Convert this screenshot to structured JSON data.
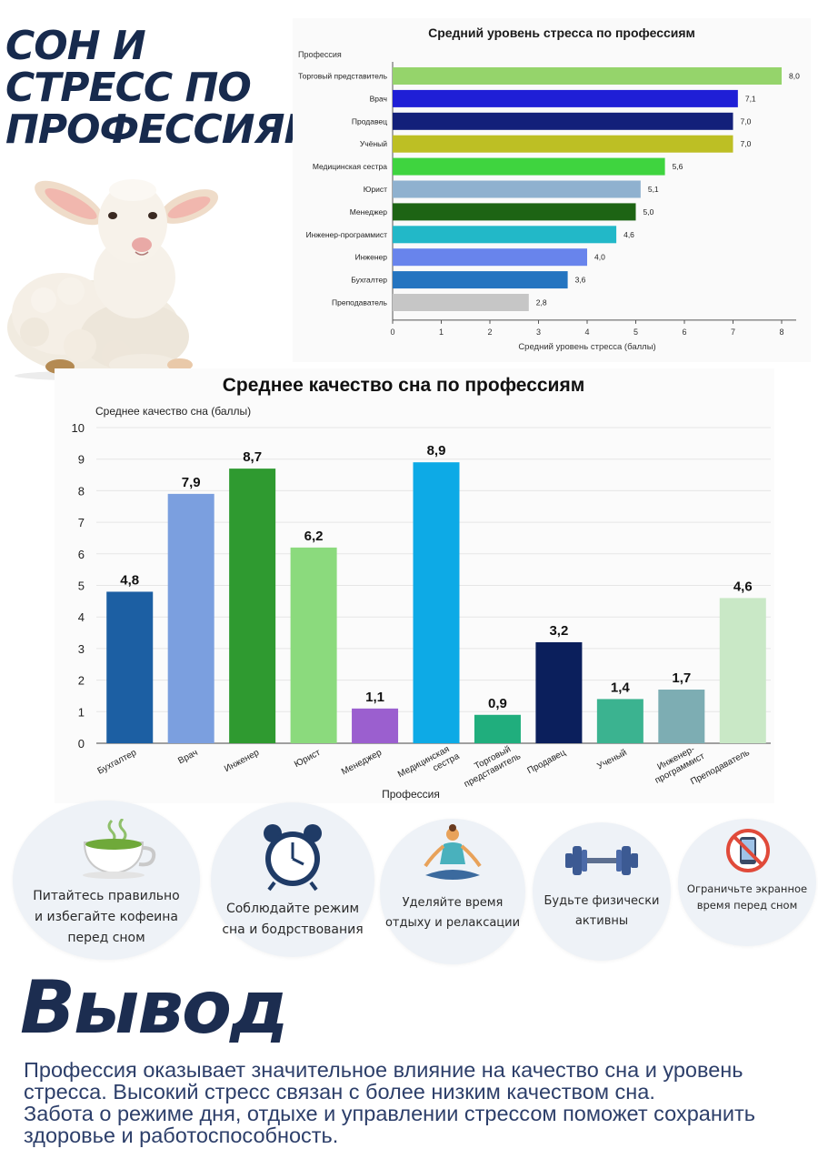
{
  "header": {
    "title_lines": [
      "СОН И",
      "СТРЕСС ПО",
      "ПРОФЕССИЯМ"
    ]
  },
  "chart_data": [
    {
      "type": "bar",
      "orientation": "horizontal",
      "title": "Средний уровень стресса по профессиям",
      "ylabel": "Профессия",
      "xlabel": "Средний уровень стресса (баллы)",
      "xlim": [
        0,
        8
      ],
      "xticks": [
        "0",
        "1",
        "2",
        "3",
        "4",
        "5",
        "6",
        "7",
        "8"
      ],
      "categories": [
        "Торговый представитель",
        "Врач",
        "Продавец",
        "Учёный",
        "Медицинская сестра",
        "Юрист",
        "Менеджер",
        "Инженер-программист",
        "Инженер",
        "Бухгалтер",
        "Преподаватель"
      ],
      "values": [
        8.0,
        7.1,
        7.0,
        7.0,
        5.6,
        5.1,
        5.0,
        4.6,
        4.0,
        3.6,
        2.8
      ],
      "value_labels": [
        "8,0",
        "7,1",
        "7,0",
        "7,0",
        "5,6",
        "5,1",
        "5,0",
        "4,6",
        "4,0",
        "3,6",
        "2,8"
      ],
      "colors": [
        "#95d46b",
        "#1f1fd6",
        "#13207a",
        "#bdbf24",
        "#3fd43f",
        "#8fb1cf",
        "#1d6414",
        "#22b8c8",
        "#6884ec",
        "#2474c0",
        "#c6c6c6"
      ],
      "grid": false,
      "legend": "none"
    },
    {
      "type": "bar",
      "orientation": "vertical",
      "title": "Среднее качество сна по профессиям",
      "ylabel": "Среднее качество сна (баллы)",
      "xlabel": "Профессия",
      "ylim": [
        0,
        10
      ],
      "yticks": [
        "0",
        "1",
        "2",
        "3",
        "4",
        "5",
        "6",
        "7",
        "8",
        "9",
        "10"
      ],
      "categories": [
        "Бухгалтер",
        "Врач",
        "Инженер",
        "Юрист",
        "Менеджер",
        "Медицинская сестра",
        "Торговый представитель",
        "Продавец",
        "Ученый",
        "Инженер-программист",
        "Преподаватель"
      ],
      "category_lines": [
        [
          "Бухгалтер"
        ],
        [
          "Врач"
        ],
        [
          "Инженер"
        ],
        [
          "Юрист"
        ],
        [
          "Менеджер"
        ],
        [
          "Медицинская",
          "сестра"
        ],
        [
          "Торговый",
          "представитель"
        ],
        [
          "Продавец"
        ],
        [
          "Ученый"
        ],
        [
          "Инженер-",
          "программист"
        ],
        [
          "Преподаватель"
        ]
      ],
      "values": [
        4.8,
        7.9,
        8.7,
        6.2,
        1.1,
        8.9,
        0.9,
        3.2,
        1.4,
        1.7,
        4.6
      ],
      "value_labels": [
        "4,8",
        "7,9",
        "8,7",
        "6,2",
        "1,1",
        "8,9",
        "0,9",
        "3,2",
        "1,4",
        "1,7",
        "4,6"
      ],
      "colors": [
        "#1c5fa3",
        "#7b9fdf",
        "#2f9a30",
        "#8bda7d",
        "#9b5fcf",
        "#0daae6",
        "#20ae7d",
        "#0b1f5c",
        "#3bb390",
        "#7dadb3",
        "#c9e8c6"
      ],
      "grid": true,
      "legend": "none"
    }
  ],
  "tips": [
    {
      "lines": [
        "Питайтесь правильно",
        "и избегайте кофеина",
        "перед сном"
      ],
      "icon": "tea-cup-icon"
    },
    {
      "lines": [
        "Соблюдайте режим",
        "сна и бодрствования"
      ],
      "icon": "alarm-clock-icon"
    },
    {
      "lines": [
        "Уделяйте время",
        "отдыху и релаксации"
      ],
      "icon": "meditation-icon"
    },
    {
      "lines": [
        "Будьте физически",
        "активны"
      ],
      "icon": "dumbbell-icon"
    },
    {
      "lines": [
        "Ограничьте экранное",
        "время перед сном"
      ],
      "icon": "no-phone-icon"
    }
  ],
  "conclusion": {
    "title": "Вывод",
    "lines": [
      "Профессия оказывает значительное влияние на качество сна и уровень",
      "стресса. Высокий стресс связан с более низким качеством сна.",
      "Забота о режиме дня, отдыхе и управлении стрессом поможет сохранить",
      "здоровье и работоспособность."
    ]
  }
}
